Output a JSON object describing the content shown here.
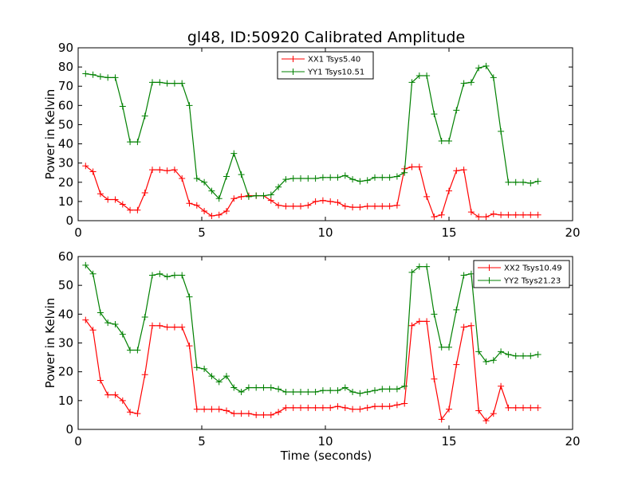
{
  "figure": {
    "title": "gl48, ID:50920 Calibrated Amplitude"
  },
  "chart_data": [
    {
      "type": "line",
      "title": "gl48, ID:50920 Calibrated Amplitude",
      "xlabel": "",
      "ylabel": "Power in Kelvin",
      "xlim": [
        0,
        20
      ],
      "ylim": [
        0,
        90
      ],
      "xticks": [
        "0",
        "5",
        "10",
        "15",
        "20"
      ],
      "yticks": [
        "0",
        "10",
        "20",
        "30",
        "40",
        "50",
        "60",
        "70",
        "80",
        "90"
      ],
      "grid": false,
      "legend_position": "top-center",
      "x": [
        0.3,
        0.6,
        0.9,
        1.2,
        1.5,
        1.8,
        2.1,
        2.4,
        2.7,
        3.0,
        3.3,
        3.6,
        3.9,
        4.2,
        4.5,
        4.8,
        5.1,
        5.4,
        5.7,
        6.0,
        6.3,
        6.6,
        6.9,
        7.2,
        7.5,
        7.8,
        8.1,
        8.4,
        8.7,
        9.0,
        9.3,
        9.6,
        9.9,
        10.2,
        10.5,
        10.8,
        11.1,
        11.4,
        11.7,
        12.0,
        12.3,
        12.6,
        12.9,
        13.2,
        13.5,
        13.8,
        14.1,
        14.4,
        14.7,
        15.0,
        15.3,
        15.6,
        15.9,
        16.2,
        16.5,
        16.8,
        17.1,
        17.4,
        17.7,
        18.0,
        18.3,
        18.6
      ],
      "series": [
        {
          "name": "XX1 Tsys5.40",
          "color": "#ff0000",
          "values": [
            28.5,
            25.5,
            14,
            11,
            11,
            8.5,
            5.5,
            5.5,
            14.5,
            26.5,
            26.5,
            26,
            26.5,
            22,
            9,
            8,
            5,
            2.5,
            3,
            5,
            11.5,
            12.5,
            13,
            13,
            13,
            10.5,
            8,
            7.5,
            7.5,
            7.5,
            8,
            10,
            10.5,
            10,
            9.5,
            7.5,
            7,
            7,
            7.5,
            7.5,
            7.5,
            7.5,
            8,
            27,
            28,
            28,
            12.5,
            2,
            3,
            15.5,
            26,
            26.5,
            4.5,
            2,
            2,
            3.5,
            3,
            3,
            3,
            3,
            3,
            3
          ]
        },
        {
          "name": "YY1 Tsys10.51",
          "color": "#008000",
          "values": [
            76.5,
            76,
            75,
            74.5,
            74.5,
            59.5,
            41,
            41,
            54.5,
            72,
            72,
            71.5,
            71.5,
            71.5,
            60,
            22,
            20,
            15.5,
            11.5,
            23,
            35,
            24,
            12.5,
            13,
            13,
            13.5,
            17.5,
            21.5,
            22,
            22,
            22,
            22,
            22.5,
            22.5,
            22.5,
            23.5,
            21.5,
            20.5,
            21,
            22.5,
            22.5,
            22.5,
            23,
            25,
            72,
            75.5,
            75.5,
            55.5,
            41.5,
            41.5,
            57.5,
            71.5,
            72,
            79.5,
            80.5,
            74.5,
            46.5,
            20,
            20,
            20,
            19.5,
            20.5
          ]
        }
      ]
    },
    {
      "type": "line",
      "title": "",
      "xlabel": "Time (seconds)",
      "ylabel": "Power in Kelvin",
      "xlim": [
        0,
        20
      ],
      "ylim": [
        0,
        60
      ],
      "xticks": [
        "0",
        "5",
        "10",
        "15",
        "20"
      ],
      "yticks": [
        "0",
        "10",
        "20",
        "30",
        "40",
        "50",
        "60"
      ],
      "grid": false,
      "legend_position": "top-right",
      "x": [
        0.3,
        0.6,
        0.9,
        1.2,
        1.5,
        1.8,
        2.1,
        2.4,
        2.7,
        3.0,
        3.3,
        3.6,
        3.9,
        4.2,
        4.5,
        4.8,
        5.1,
        5.4,
        5.7,
        6.0,
        6.3,
        6.6,
        6.9,
        7.2,
        7.5,
        7.8,
        8.1,
        8.4,
        8.7,
        9.0,
        9.3,
        9.6,
        9.9,
        10.2,
        10.5,
        10.8,
        11.1,
        11.4,
        11.7,
        12.0,
        12.3,
        12.6,
        12.9,
        13.2,
        13.5,
        13.8,
        14.1,
        14.4,
        14.7,
        15.0,
        15.3,
        15.6,
        15.9,
        16.2,
        16.5,
        16.8,
        17.1,
        17.4,
        17.7,
        18.0,
        18.3,
        18.6
      ],
      "series": [
        {
          "name": "XX2 Tsys10.49",
          "color": "#ff0000",
          "values": [
            38,
            34.5,
            17,
            12,
            12,
            10,
            6,
            5.5,
            19,
            36,
            36,
            35.5,
            35.5,
            35.5,
            29,
            7,
            7,
            7,
            7,
            6.5,
            5.5,
            5.5,
            5.5,
            5,
            5,
            5,
            6,
            7.5,
            7.5,
            7.5,
            7.5,
            7.5,
            7.5,
            7.5,
            8,
            7.5,
            7,
            7,
            7.5,
            8,
            8,
            8,
            8.5,
            9,
            36,
            37.5,
            37.5,
            17.5,
            3.5,
            7,
            22.5,
            35.5,
            36,
            6.5,
            3,
            5.5,
            15,
            7.5,
            7.5,
            7.5,
            7.5,
            7.5
          ]
        },
        {
          "name": "YY2 Tsys21.23",
          "color": "#008000",
          "values": [
            57,
            54,
            40.5,
            37,
            36.5,
            33,
            27.5,
            27.5,
            39,
            53.5,
            54,
            53,
            53.5,
            53.5,
            46,
            21.5,
            21,
            18.5,
            16.5,
            18.5,
            14.5,
            13,
            14.5,
            14.5,
            14.5,
            14.5,
            14,
            13,
            13,
            13,
            13,
            13,
            13.5,
            13.5,
            13.5,
            14.5,
            13,
            12.5,
            13,
            13.5,
            14,
            14,
            14,
            15,
            54.5,
            56.5,
            56.5,
            40,
            28.5,
            28.5,
            41.5,
            53.5,
            54,
            27,
            23.5,
            24,
            27,
            26,
            25.5,
            25.5,
            25.5,
            26
          ]
        }
      ]
    }
  ]
}
